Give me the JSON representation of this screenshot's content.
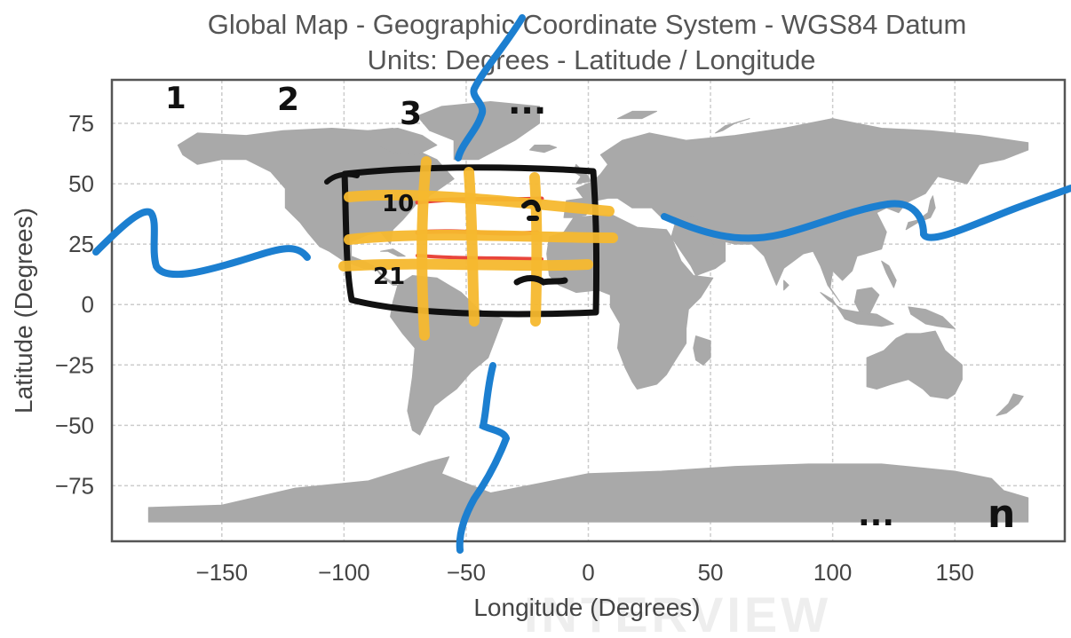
{
  "map": {
    "title_line1": "Global Map - Geographic Coordinate System - WGS84 Datum",
    "title_line2": "Units: Degrees - Latitude / Longitude",
    "xlabel": "Longitude (Degrees)",
    "ylabel": "Latitude (Degrees)",
    "xlim": [
      -195,
      195
    ],
    "ylim": [
      -98,
      93
    ],
    "x_ticks": [
      -150,
      -100,
      -50,
      0,
      50,
      100,
      150
    ],
    "x_tick_labels": [
      "−150",
      "−100",
      "−50",
      "0",
      "50",
      "100",
      "150"
    ],
    "y_ticks": [
      75,
      50,
      25,
      0,
      -25,
      -50,
      -75
    ],
    "y_tick_labels": [
      "75",
      "50",
      "25",
      "0",
      "−25",
      "−50",
      "−75"
    ],
    "grid": true,
    "grid_style": "dashed",
    "land_color": "#a9a9a9",
    "frame_color": "#555555"
  },
  "annotations": {
    "bbox_color": "#111111",
    "bbox_lon": [
      -100,
      5
    ],
    "bbox_lat": [
      -5,
      55
    ],
    "grid_color": "#f5b82e",
    "grid_lines_lon": [
      -65,
      -45,
      -20
    ],
    "grid_lines_lat": [
      38,
      27,
      16
    ],
    "highlight_color": "#e8453c",
    "wave_color": "#1c7fd0",
    "cell_labels": [
      "1",
      "2",
      "3",
      "...",
      "10",
      "21",
      "n",
      "..."
    ]
  },
  "watermark": {
    "text": "INTERVIEW"
  }
}
